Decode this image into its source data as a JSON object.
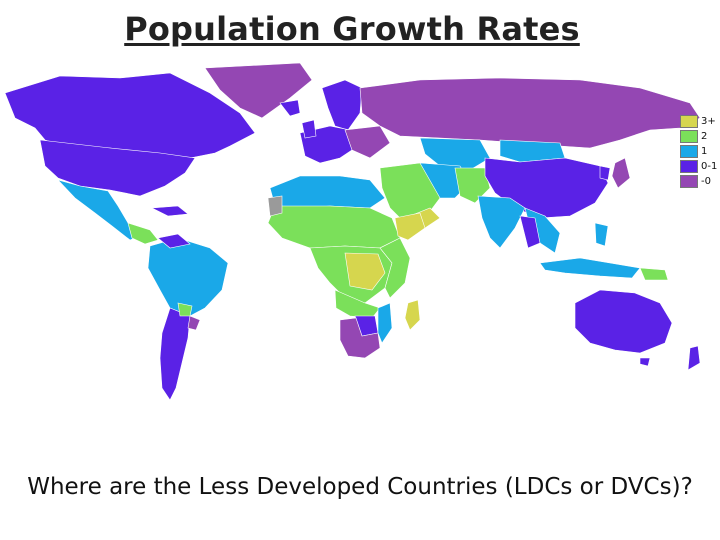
{
  "title": "Population Growth Rates",
  "question": "Where are the Less Developed Countries (LDCs or DVCs)?",
  "legend": [
    {
      "label": "3+",
      "color": "#d6d64e"
    },
    {
      "label": "2",
      "color": "#7be05a"
    },
    {
      "label": "1",
      "color": "#1aa8e8"
    },
    {
      "label": "0-1",
      "color": "#5a22e6"
    },
    {
      "label": "-0",
      "color": "#9447b3"
    }
  ],
  "colors": {
    "r3": "#d6d64e",
    "r2": "#7be05a",
    "r1": "#1aa8e8",
    "r0": "#5a22e6",
    "rn": "#9447b3",
    "nodata": "#9a9a9a"
  }
}
